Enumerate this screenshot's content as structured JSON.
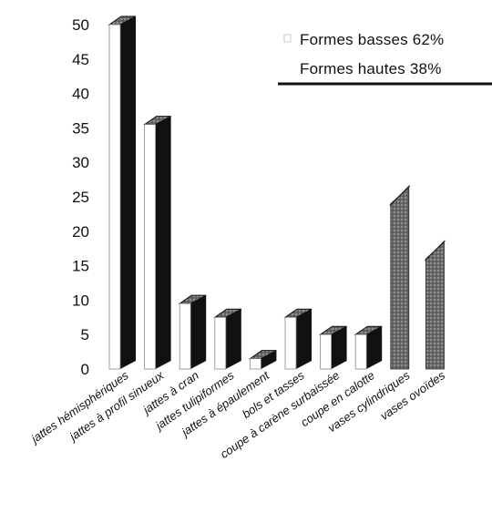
{
  "chart_data": {
    "type": "bar",
    "title": "",
    "xlabel": "",
    "ylabel": "",
    "ylim": [
      0,
      50
    ],
    "yticks": [
      0,
      5,
      10,
      15,
      20,
      25,
      30,
      35,
      40,
      45,
      50
    ],
    "grid": false,
    "legend_position": "top-right",
    "categories": [
      "jattes hémisphériques",
      "jattes à profil sinueux",
      "jattes à cran",
      "jattes tulipiformes",
      "jattes à épaulement",
      "bols et tasses",
      "coupe à carène surbaissée",
      "coupe en calotte",
      "vases cylindriques",
      "vases ovoïdes"
    ],
    "series": [
      {
        "name": "Formes basses 62%",
        "values": [
          50,
          35.5,
          9.5,
          7.5,
          1.5,
          7.5,
          5,
          5,
          0,
          0
        ]
      },
      {
        "name": "Formes hautes 38%",
        "values": [
          0,
          0,
          0,
          0,
          0,
          0,
          0,
          0,
          24,
          16
        ]
      }
    ],
    "colors": {
      "low_front": "#ffffff",
      "low_side": "#111111",
      "high": "#707070",
      "axis": "#111111"
    }
  }
}
